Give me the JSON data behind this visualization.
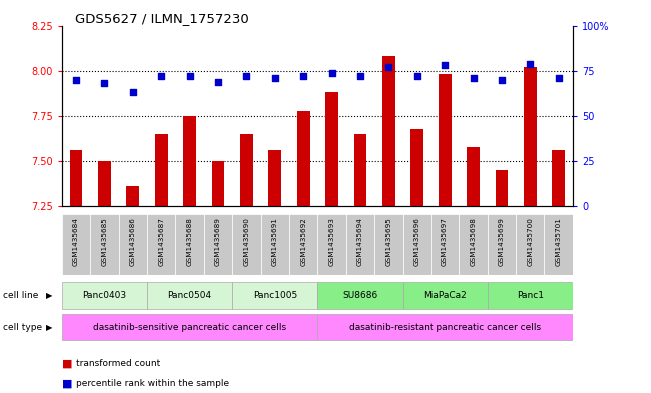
{
  "title": "GDS5627 / ILMN_1757230",
  "samples": [
    "GSM1435684",
    "GSM1435685",
    "GSM1435686",
    "GSM1435687",
    "GSM1435688",
    "GSM1435689",
    "GSM1435690",
    "GSM1435691",
    "GSM1435692",
    "GSM1435693",
    "GSM1435694",
    "GSM1435695",
    "GSM1435696",
    "GSM1435697",
    "GSM1435698",
    "GSM1435699",
    "GSM1435700",
    "GSM1435701"
  ],
  "transformed_counts": [
    7.56,
    7.5,
    7.36,
    7.65,
    7.75,
    7.5,
    7.65,
    7.56,
    7.78,
    7.88,
    7.65,
    8.08,
    7.68,
    7.98,
    7.58,
    7.45,
    8.02,
    7.56
  ],
  "percentile_ranks": [
    70,
    68,
    63,
    72,
    72,
    69,
    72,
    71,
    72,
    74,
    72,
    77,
    72,
    78,
    71,
    70,
    79,
    71
  ],
  "cell_lines": [
    {
      "name": "Panc0403",
      "start": 0,
      "end": 2,
      "color": "#d5f5d5"
    },
    {
      "name": "Panc0504",
      "start": 3,
      "end": 5,
      "color": "#d5f5d5"
    },
    {
      "name": "Panc1005",
      "start": 6,
      "end": 8,
      "color": "#d5f5d5"
    },
    {
      "name": "SU8686",
      "start": 9,
      "end": 11,
      "color": "#88ee88"
    },
    {
      "name": "MiaPaCa2",
      "start": 12,
      "end": 14,
      "color": "#88ee88"
    },
    {
      "name": "Panc1",
      "start": 15,
      "end": 17,
      "color": "#88ee88"
    }
  ],
  "cell_types": [
    {
      "name": "dasatinib-sensitive pancreatic cancer cells",
      "start": 0,
      "end": 8
    },
    {
      "name": "dasatinib-resistant pancreatic cancer cells",
      "start": 9,
      "end": 17
    }
  ],
  "cell_type_color": "#ff88ff",
  "sample_box_color": "#c8c8c8",
  "ylim_left": [
    7.25,
    8.25
  ],
  "ylim_right": [
    0,
    100
  ],
  "yticks_left": [
    7.25,
    7.5,
    7.75,
    8.0,
    8.25
  ],
  "yticks_right": [
    0,
    25,
    50,
    75,
    100
  ],
  "ytick_labels_right": [
    "0",
    "25",
    "50",
    "75",
    "100%"
  ],
  "bar_color": "#cc0000",
  "dot_color": "#0000cc",
  "background_color": "#ffffff",
  "dotted_lines": [
    7.5,
    7.75,
    8.0
  ],
  "legend_items": [
    {
      "label": "transformed count",
      "color": "#cc0000"
    },
    {
      "label": "percentile rank within the sample",
      "color": "#0000cc"
    }
  ]
}
